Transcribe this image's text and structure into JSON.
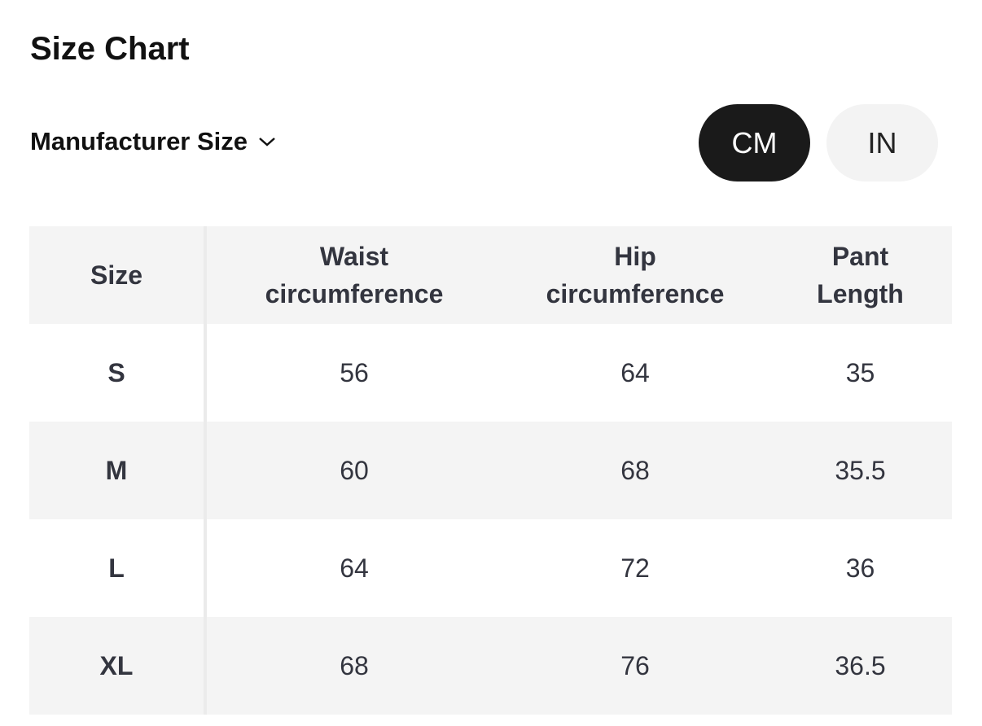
{
  "title": "Size Chart",
  "size_selector": {
    "label": "Manufacturer Size",
    "icon": "chevron-down-icon"
  },
  "units": {
    "options": [
      "CM",
      "IN"
    ],
    "selected": "CM"
  },
  "table": {
    "headers": [
      "Size",
      [
        "Waist",
        "circumference"
      ],
      [
        "Hip",
        "circumference"
      ],
      [
        "Pant",
        "Length"
      ]
    ],
    "rows": [
      [
        "S",
        "56",
        "64",
        "35"
      ],
      [
        "M",
        "60",
        "68",
        "35.5"
      ],
      [
        "L",
        "64",
        "72",
        "36"
      ],
      [
        "XL",
        "68",
        "76",
        "36.5"
      ]
    ]
  }
}
